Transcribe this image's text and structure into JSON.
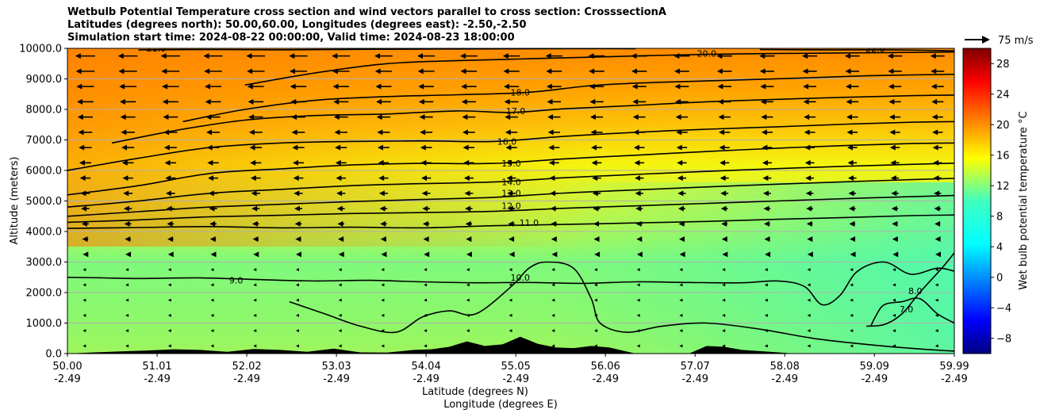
{
  "chart_data": {
    "type": "heatmap",
    "title_lines": [
      "Wetbulb Potential Temperature cross section and wind vectors parallel to cross section: CrosssectionA",
      "Latitudes (degrees north): 50.00,60.00, Longitudes (degrees east): -2.50,-2.50",
      "Simulation start time: 2024-08-22 00:00:00, Valid time: 2024-08-23 18:00:00"
    ],
    "xlabel_lines": [
      "Latitude (degrees N)",
      "Longitude (degrees E)"
    ],
    "ylabel": "Altitude (meters)",
    "xlim": [
      50.0,
      59.99
    ],
    "ylim": [
      0,
      10000
    ],
    "x_ticks": [
      {
        "lat": "50.00",
        "lon": "-2.49",
        "v": 50.0
      },
      {
        "lat": "51.01",
        "lon": "-2.49",
        "v": 51.01
      },
      {
        "lat": "52.02",
        "lon": "-2.49",
        "v": 52.02
      },
      {
        "lat": "53.03",
        "lon": "-2.49",
        "v": 53.03
      },
      {
        "lat": "54.04",
        "lon": "-2.49",
        "v": 54.04
      },
      {
        "lat": "55.05",
        "lon": "-2.49",
        "v": 55.05
      },
      {
        "lat": "56.06",
        "lon": "-2.49",
        "v": 56.06
      },
      {
        "lat": "57.07",
        "lon": "-2.49",
        "v": 57.07
      },
      {
        "lat": "58.08",
        "lon": "-2.49",
        "v": 58.08
      },
      {
        "lat": "59.09",
        "lon": "-2.49",
        "v": 59.09
      },
      {
        "lat": "59.99",
        "lon": "-2.49",
        "v": 59.99
      }
    ],
    "y_ticks": [
      {
        "label": "0.0",
        "v": 0
      },
      {
        "label": "1000.0",
        "v": 1000
      },
      {
        "label": "2000.0",
        "v": 2000
      },
      {
        "label": "3000.0",
        "v": 3000
      },
      {
        "label": "4000.0",
        "v": 4000
      },
      {
        "label": "5000.0",
        "v": 5000
      },
      {
        "label": "6000.0",
        "v": 6000
      },
      {
        "label": "7000.0",
        "v": 7000
      },
      {
        "label": "8000.0",
        "v": 8000
      },
      {
        "label": "9000.0",
        "v": 9000
      },
      {
        "label": "10000.0",
        "v": 10000
      }
    ],
    "grid": true,
    "colorbar": {
      "label": "Wet bulb potential temperature °C",
      "range": [
        -10,
        30
      ],
      "colormap": "jet",
      "tick_labels": [
        {
          "label": "−8",
          "v": -8
        },
        {
          "label": "−4",
          "v": -4
        },
        {
          "label": "0",
          "v": 0
        },
        {
          "label": "4",
          "v": 4
        },
        {
          "label": "8",
          "v": 8
        },
        {
          "label": "12",
          "v": 12
        },
        {
          "label": "16",
          "v": 16
        },
        {
          "label": "20",
          "v": 20
        },
        {
          "label": "24",
          "v": 24
        },
        {
          "label": "28",
          "v": 28
        }
      ]
    },
    "quiver_key": {
      "label": "75 m/s",
      "value": 75
    },
    "contours": [
      {
        "level": 7.0,
        "label": "7.0",
        "pts": [
          [
            59.99,
            3300
          ],
          [
            59.85,
            2800
          ],
          [
            59.6,
            2000
          ],
          [
            59.4,
            1300
          ],
          [
            59.2,
            950
          ],
          [
            59.0,
            900
          ]
        ],
        "label_at": [
          59.45,
          1450
        ]
      },
      {
        "level": 8.0,
        "label": "8.0",
        "pts": [
          [
            59.99,
            1000
          ],
          [
            59.8,
            1300
          ],
          [
            59.6,
            1800
          ],
          [
            59.4,
            1700
          ],
          [
            59.2,
            1600
          ],
          [
            59.1,
            1200
          ],
          [
            59.05,
            900
          ]
        ],
        "label_at": [
          59.55,
          2050
        ]
      },
      {
        "level": 9.0,
        "label": "9.0",
        "pts": [
          [
            50.0,
            2500
          ],
          [
            50.4,
            2480
          ],
          [
            50.8,
            2460
          ],
          [
            51.5,
            2480
          ],
          [
            52.2,
            2420
          ],
          [
            52.8,
            2380
          ],
          [
            53.4,
            2400
          ],
          [
            54.0,
            2350
          ],
          [
            54.6,
            2320
          ],
          [
            55.2,
            2330
          ],
          [
            55.8,
            2300
          ],
          [
            56.4,
            2350
          ],
          [
            57.0,
            2330
          ],
          [
            57.6,
            2320
          ],
          [
            58.0,
            2380
          ],
          [
            58.3,
            2200
          ],
          [
            58.5,
            1600
          ],
          [
            58.7,
            1900
          ],
          [
            58.9,
            2700
          ],
          [
            59.2,
            3000
          ],
          [
            59.5,
            2600
          ],
          [
            59.8,
            2800
          ],
          [
            59.99,
            2700
          ]
        ],
        "label_at": [
          51.9,
          2400
        ]
      },
      {
        "level": 10.0,
        "label": "10.0",
        "pts": [
          [
            52.5,
            1700
          ],
          [
            52.9,
            1300
          ],
          [
            53.3,
            900
          ],
          [
            53.7,
            700
          ],
          [
            54.0,
            1200
          ],
          [
            54.3,
            1400
          ],
          [
            54.6,
            1300
          ],
          [
            55.0,
            2200
          ],
          [
            55.2,
            2800
          ],
          [
            55.4,
            3000
          ],
          [
            55.7,
            2800
          ],
          [
            55.9,
            1800
          ],
          [
            56.0,
            1000
          ],
          [
            56.3,
            700
          ],
          [
            56.7,
            900
          ],
          [
            57.2,
            1000
          ],
          [
            57.8,
            800
          ],
          [
            58.4,
            500
          ],
          [
            59.0,
            300
          ],
          [
            59.6,
            150
          ],
          [
            59.99,
            80
          ]
        ],
        "label_at": [
          55.1,
          2500
        ]
      },
      {
        "level": 11.0,
        "label": "11.0",
        "pts": [
          [
            50.0,
            4100
          ],
          [
            50.8,
            4130
          ],
          [
            51.6,
            4160
          ],
          [
            52.4,
            4120
          ],
          [
            53.2,
            4140
          ],
          [
            54.0,
            4120
          ],
          [
            54.8,
            4190
          ],
          [
            55.6,
            4230
          ],
          [
            56.4,
            4280
          ],
          [
            57.2,
            4330
          ],
          [
            58.0,
            4400
          ],
          [
            58.8,
            4460
          ],
          [
            59.5,
            4520
          ],
          [
            59.99,
            4540
          ]
        ],
        "label_at": [
          55.2,
          4280
        ]
      },
      {
        "level": 12.0,
        "label": "12.0",
        "pts": [
          [
            50.0,
            4300
          ],
          [
            50.8,
            4380
          ],
          [
            51.6,
            4480
          ],
          [
            52.4,
            4530
          ],
          [
            53.2,
            4590
          ],
          [
            54.0,
            4620
          ],
          [
            54.8,
            4660
          ],
          [
            55.6,
            4760
          ],
          [
            56.4,
            4840
          ],
          [
            57.2,
            4920
          ],
          [
            58.0,
            5000
          ],
          [
            58.8,
            5080
          ],
          [
            59.5,
            5140
          ],
          [
            59.99,
            5180
          ]
        ],
        "label_at": [
          55.0,
          4840
        ]
      },
      {
        "level": 13.0,
        "label": "13.0",
        "pts": [
          [
            50.0,
            4500
          ],
          [
            50.8,
            4650
          ],
          [
            51.6,
            4800
          ],
          [
            52.4,
            4890
          ],
          [
            53.2,
            4980
          ],
          [
            54.0,
            5050
          ],
          [
            54.8,
            5120
          ],
          [
            55.6,
            5260
          ],
          [
            56.4,
            5360
          ],
          [
            57.2,
            5460
          ],
          [
            58.0,
            5550
          ],
          [
            58.8,
            5630
          ],
          [
            59.5,
            5700
          ],
          [
            59.99,
            5740
          ]
        ],
        "label_at": [
          55.0,
          5260
        ]
      },
      {
        "level": 14.0,
        "label": "14.0",
        "pts": [
          [
            50.0,
            4800
          ],
          [
            50.8,
            5000
          ],
          [
            51.6,
            5250
          ],
          [
            52.4,
            5380
          ],
          [
            53.2,
            5500
          ],
          [
            54.0,
            5570
          ],
          [
            54.8,
            5620
          ],
          [
            55.6,
            5760
          ],
          [
            56.4,
            5870
          ],
          [
            57.2,
            5970
          ],
          [
            58.0,
            6060
          ],
          [
            58.8,
            6140
          ],
          [
            59.5,
            6200
          ],
          [
            59.99,
            6240
          ]
        ],
        "label_at": [
          55.0,
          5620
        ]
      },
      {
        "level": 15.0,
        "label": "15.0",
        "pts": [
          [
            50.0,
            5200
          ],
          [
            50.8,
            5500
          ],
          [
            51.6,
            5900
          ],
          [
            52.4,
            6050
          ],
          [
            53.2,
            6180
          ],
          [
            54.0,
            6230
          ],
          [
            54.8,
            6230
          ],
          [
            55.6,
            6380
          ],
          [
            56.4,
            6500
          ],
          [
            57.2,
            6620
          ],
          [
            58.0,
            6730
          ],
          [
            58.8,
            6820
          ],
          [
            59.5,
            6880
          ],
          [
            59.99,
            6900
          ]
        ],
        "label_at": [
          55.0,
          6230
        ]
      },
      {
        "level": 16.0,
        "label": "16.0",
        "pts": [
          [
            50.0,
            6000
          ],
          [
            50.8,
            6400
          ],
          [
            51.6,
            6750
          ],
          [
            52.4,
            6900
          ],
          [
            53.2,
            6950
          ],
          [
            54.0,
            6970
          ],
          [
            54.8,
            6950
          ],
          [
            55.6,
            7120
          ],
          [
            56.4,
            7250
          ],
          [
            57.2,
            7350
          ],
          [
            58.0,
            7430
          ],
          [
            58.8,
            7520
          ],
          [
            59.5,
            7580
          ],
          [
            59.99,
            7600
          ]
        ],
        "label_at": [
          54.95,
          6950
        ]
      },
      {
        "level": 17.0,
        "label": "17.0",
        "pts": [
          [
            50.5,
            6900
          ],
          [
            51.2,
            7300
          ],
          [
            52.0,
            7650
          ],
          [
            52.8,
            7800
          ],
          [
            53.6,
            7850
          ],
          [
            54.4,
            7950
          ],
          [
            55.0,
            7900
          ],
          [
            55.6,
            8020
          ],
          [
            56.4,
            8130
          ],
          [
            57.2,
            8250
          ],
          [
            58.0,
            8330
          ],
          [
            58.8,
            8400
          ],
          [
            59.5,
            8450
          ],
          [
            59.99,
            8470
          ]
        ],
        "label_at": [
          55.05,
          7950
        ]
      },
      {
        "level": 18.0,
        "label": "18.0",
        "pts": [
          [
            51.3,
            7600
          ],
          [
            52.0,
            8000
          ],
          [
            52.8,
            8300
          ],
          [
            53.6,
            8420
          ],
          [
            54.4,
            8480
          ],
          [
            55.2,
            8560
          ],
          [
            55.9,
            8780
          ],
          [
            56.6,
            8880
          ],
          [
            57.4,
            8950
          ],
          [
            58.2,
            9020
          ],
          [
            59.0,
            9100
          ],
          [
            59.99,
            9150
          ]
        ],
        "label_at": [
          55.1,
          8560
        ]
      },
      {
        "level": 20.0,
        "label": "20.0",
        "pts": [
          [
            52.0,
            8800
          ],
          [
            52.8,
            9200
          ],
          [
            53.6,
            9500
          ],
          [
            54.4,
            9600
          ],
          [
            55.2,
            9660
          ],
          [
            56.0,
            9720
          ],
          [
            56.8,
            9780
          ],
          [
            57.6,
            9820
          ],
          [
            58.4,
            9840
          ],
          [
            59.2,
            9860
          ],
          [
            59.99,
            9880
          ]
        ],
        "label_at": [
          57.2,
          9830
        ]
      },
      {
        "level": 21.0,
        "label": "21.0",
        "pts": [
          [
            50.8,
            9950
          ],
          [
            51.6,
            9960
          ],
          [
            52.4,
            9950
          ],
          [
            53.4,
            9970
          ],
          [
            54.4,
            9980
          ],
          [
            55.4,
            9990
          ],
          [
            56.4,
            9990
          ]
        ],
        "label_at": [
          51.0,
          10000
        ]
      },
      {
        "level": 22.0,
        "label": "22.0",
        "pts": [
          [
            57.8,
            9960
          ],
          [
            58.6,
            9950
          ],
          [
            59.3,
            9950
          ],
          [
            59.99,
            9920
          ]
        ],
        "label_at": [
          59.1,
          9990
        ]
      }
    ],
    "terrain_lat": [
      50.0,
      50.3,
      50.6,
      50.9,
      51.2,
      51.5,
      51.8,
      52.1,
      52.4,
      52.7,
      53.0,
      53.3,
      53.6,
      53.9,
      54.1,
      54.3,
      54.5,
      54.7,
      54.9,
      55.1,
      55.3,
      55.5,
      55.7,
      55.9,
      56.1,
      56.4,
      56.7,
      57.0,
      57.2,
      57.4,
      57.6,
      57.8,
      58.2,
      58.6,
      59.0,
      59.4,
      59.99
    ],
    "terrain_m": [
      0,
      40,
      70,
      100,
      140,
      120,
      60,
      150,
      120,
      60,
      160,
      40,
      30,
      120,
      140,
      220,
      400,
      250,
      300,
      550,
      320,
      200,
      180,
      250,
      200,
      0,
      0,
      0,
      250,
      220,
      120,
      80,
      0,
      0,
      0,
      0,
      0
    ]
  }
}
